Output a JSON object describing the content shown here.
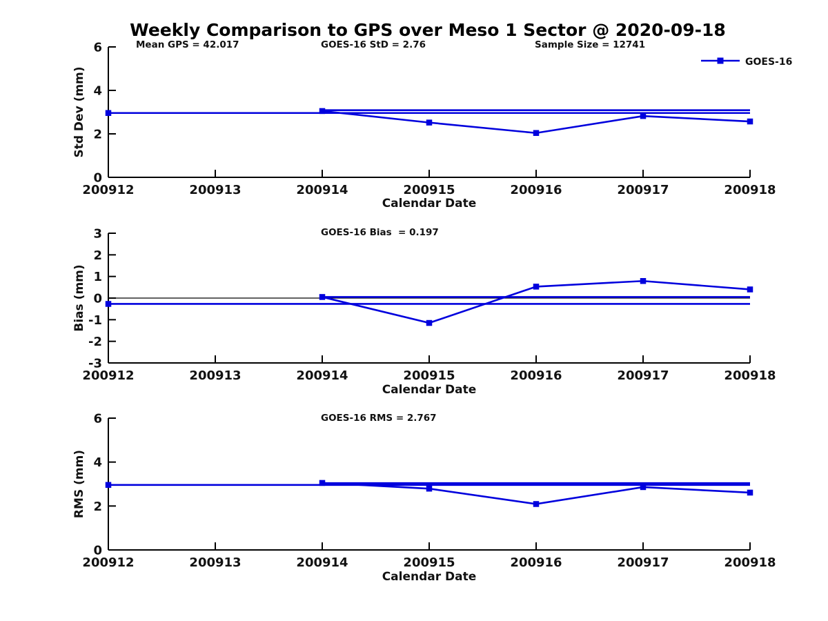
{
  "title": "Weekly Comparison to GPS over Meso 1 Sector @ 2020-09-18",
  "legend": {
    "label": "GOES-16"
  },
  "accent_color": "#0000DD",
  "zero_line_color": "#000000",
  "chart_data": [
    {
      "type": "line",
      "name": "stddev",
      "ylabel": "Std Dev (mm)",
      "xlabel": "Calendar Date",
      "categories": [
        "200912",
        "200913",
        "200914",
        "200915",
        "200916",
        "200917",
        "200918"
      ],
      "ylim": [
        0,
        6
      ],
      "yticks": [
        {
          "v": 0,
          "label": "0"
        },
        {
          "v": 2,
          "label": "2"
        },
        {
          "v": 4,
          "label": "4"
        },
        {
          "v": 6,
          "label": "6"
        }
      ],
      "grid": false,
      "legend_position": "top-right-above-axes",
      "subtitles": [
        {
          "text": "Mean GPS = 42.017",
          "slot": "left"
        },
        {
          "text": "GOES-16 StD = 2.76",
          "slot": "center"
        },
        {
          "text": "Sample Size = 12741",
          "slot": "right"
        }
      ],
      "zero_line": false,
      "series": [
        {
          "name": "week-reference-200912",
          "x": [
            "200912",
            "200918"
          ],
          "y": [
            2.96,
            2.96
          ],
          "markers": "first"
        },
        {
          "name": "week-reference-200914",
          "x": [
            "200914",
            "200918"
          ],
          "y": [
            3.09,
            3.09
          ],
          "markers": "none"
        },
        {
          "name": "goes16-daily-stddev",
          "x": [
            "200914",
            "200915",
            "200916",
            "200917",
            "200918"
          ],
          "y": [
            3.05,
            2.52,
            2.04,
            2.82,
            2.57
          ],
          "markers": "all"
        }
      ]
    },
    {
      "type": "line",
      "name": "bias",
      "ylabel": "Bias (mm)",
      "xlabel": "Calendar Date",
      "categories": [
        "200912",
        "200913",
        "200914",
        "200915",
        "200916",
        "200917",
        "200918"
      ],
      "ylim": [
        -3,
        3
      ],
      "yticks": [
        {
          "v": -3,
          "label": "-3"
        },
        {
          "v": -2,
          "label": "-2"
        },
        {
          "v": -1,
          "label": "-1"
        },
        {
          "v": 0,
          "label": "0"
        },
        {
          "v": 1,
          "label": "1"
        },
        {
          "v": 2,
          "label": "2"
        },
        {
          "v": 3,
          "label": "3"
        }
      ],
      "grid": false,
      "subtitles": [
        {
          "text": "GOES-16 Bias  = 0.197",
          "slot": "center"
        }
      ],
      "zero_line": true,
      "series": [
        {
          "name": "week-reference-200912",
          "x": [
            "200912",
            "200918"
          ],
          "y": [
            -0.27,
            -0.27
          ],
          "markers": "first"
        },
        {
          "name": "week-reference-200914",
          "x": [
            "200914",
            "200918"
          ],
          "y": [
            0.05,
            0.05
          ],
          "markers": "none"
        },
        {
          "name": "goes16-daily-bias",
          "x": [
            "200914",
            "200915",
            "200916",
            "200917",
            "200918"
          ],
          "y": [
            0.05,
            -1.15,
            0.53,
            0.79,
            0.4
          ],
          "markers": "all"
        }
      ]
    },
    {
      "type": "line",
      "name": "rms",
      "ylabel": "RMS (mm)",
      "xlabel": "Calendar Date",
      "categories": [
        "200912",
        "200913",
        "200914",
        "200915",
        "200916",
        "200917",
        "200918"
      ],
      "ylim": [
        0,
        6
      ],
      "yticks": [
        {
          "v": 0,
          "label": "0"
        },
        {
          "v": 2,
          "label": "2"
        },
        {
          "v": 4,
          "label": "4"
        },
        {
          "v": 6,
          "label": "6"
        }
      ],
      "grid": false,
      "subtitles": [
        {
          "text": "GOES-16 RMS = 2.767",
          "slot": "center"
        }
      ],
      "zero_line": false,
      "series": [
        {
          "name": "week-reference-200912",
          "x": [
            "200912",
            "200918"
          ],
          "y": [
            2.96,
            2.96
          ],
          "markers": "first"
        },
        {
          "name": "week-reference-200914",
          "x": [
            "200914",
            "200918"
          ],
          "y": [
            3.04,
            3.04
          ],
          "markers": "none"
        },
        {
          "name": "goes16-daily-rms",
          "x": [
            "200914",
            "200915",
            "200916",
            "200917",
            "200918"
          ],
          "y": [
            3.05,
            2.79,
            2.09,
            2.86,
            2.61
          ],
          "markers": "all"
        }
      ]
    }
  ]
}
